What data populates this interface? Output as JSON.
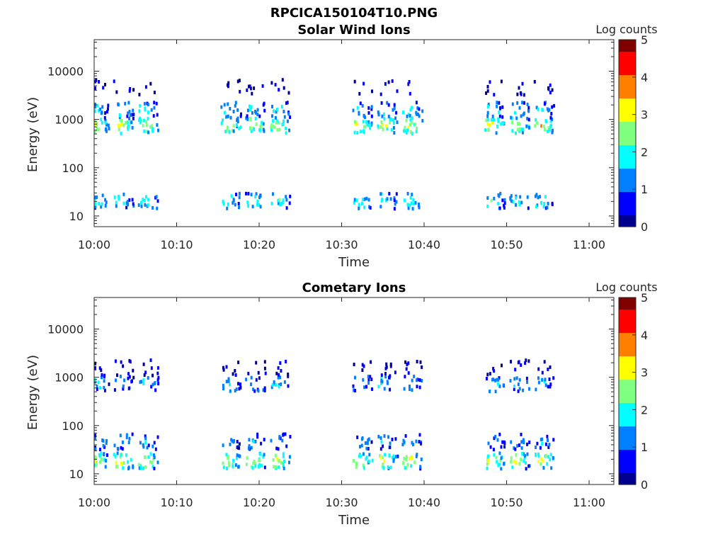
{
  "figure_title": "RPCICA150104T10.PNG",
  "colormap": [
    "#00008f",
    "#0000ff",
    "#0080ff",
    "#00ffff",
    "#80ff80",
    "#ffff00",
    "#ff8000",
    "#ff0000",
    "#800000"
  ],
  "chart_data": [
    {
      "type": "heatmap",
      "title": "Solar Wind Ions",
      "xlabel": "Time",
      "ylabel": "Energy (eV)",
      "colorbar_label": "Log counts",
      "x_scale": "time",
      "y_scale": "log",
      "xlim": [
        "10:00",
        "11:03"
      ],
      "ylim": [
        6,
        45000
      ],
      "x_ticks": [
        "10:00",
        "10:10",
        "10:20",
        "10:30",
        "10:40",
        "10:50",
        "11:00"
      ],
      "y_ticks": [
        10,
        100,
        1000,
        10000
      ],
      "y_tick_labels": [
        "10",
        "100",
        "1000",
        "10000"
      ],
      "color_range": [
        0,
        5
      ],
      "colorbar_ticks": [
        "0",
        "1",
        "2",
        "3",
        "4",
        "5"
      ],
      "grid": false,
      "bursts_minutes": [
        "10:00",
        "10:03",
        "10:06",
        "10:16",
        "10:19",
        "10:22",
        "10:32",
        "10:35",
        "10:38",
        "10:48",
        "10:51",
        "10:54"
      ],
      "bands": [
        {
          "energy_eV": 800,
          "peak_log_counts": 3.2
        },
        {
          "energy_eV": 1700,
          "peak_log_counts": 2.0
        },
        {
          "energy_eV": 22,
          "peak_log_counts": 2.2
        },
        {
          "energy_eV": 5000,
          "peak_log_counts": 0.3
        }
      ]
    },
    {
      "type": "heatmap",
      "title": "Cometary Ions",
      "xlabel": "Time",
      "ylabel": "Energy (eV)",
      "colorbar_label": "Log counts",
      "x_scale": "time",
      "y_scale": "log",
      "xlim": [
        "10:00",
        "11:03"
      ],
      "ylim": [
        6,
        45000
      ],
      "x_ticks": [
        "10:00",
        "10:10",
        "10:20",
        "10:30",
        "10:40",
        "10:50",
        "11:00"
      ],
      "y_ticks": [
        10,
        100,
        1000,
        10000
      ],
      "y_tick_labels": [
        "10",
        "100",
        "1000",
        "10000"
      ],
      "color_range": [
        0,
        5
      ],
      "colorbar_ticks": [
        "0",
        "1",
        "2",
        "3",
        "4",
        "5"
      ],
      "grid": false,
      "bursts_minutes": [
        "10:00",
        "10:03",
        "10:06",
        "10:16",
        "10:19",
        "10:22",
        "10:32",
        "10:35",
        "10:38",
        "10:48",
        "10:51",
        "10:54"
      ],
      "bands": [
        {
          "energy_eV": 20,
          "peak_log_counts": 3.2
        },
        {
          "energy_eV": 50,
          "peak_log_counts": 1.6
        },
        {
          "energy_eV": 800,
          "peak_log_counts": 1.8
        },
        {
          "energy_eV": 1700,
          "peak_log_counts": 0.5
        }
      ]
    }
  ]
}
